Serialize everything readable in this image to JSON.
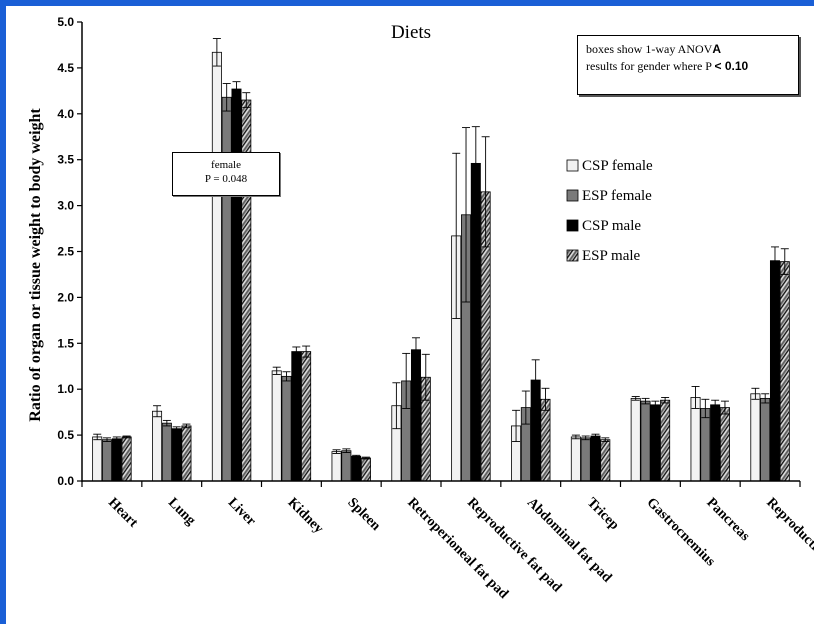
{
  "chart_data": {
    "type": "bar",
    "title": "Diets",
    "ylabel": "Ratio of organ or tissue weight to body weight",
    "xlabel": "",
    "ylim": [
      0,
      5.0
    ],
    "yticks": [
      "0.0",
      "0.5",
      "1.0",
      "1.5",
      "2.0",
      "2.5",
      "3.0",
      "3.5",
      "4.0",
      "4.5",
      "5.0"
    ],
    "grid": false,
    "legend_position": "right",
    "categories": [
      "Heart",
      "Lung",
      "Liver",
      "Kidney",
      "Spleen",
      "Retroperioneal fat pad",
      "Reproductive fat pad",
      "Abdominal fat pad",
      "Tricep",
      "Gastrocnemius",
      "Pancreas",
      "Reproductive tract"
    ],
    "series": [
      {
        "name": "CSP female",
        "fill": "#f2f2f2",
        "values": [
          0.48,
          0.76,
          4.67,
          1.2,
          0.32,
          0.82,
          2.67,
          0.6,
          0.48,
          0.9,
          0.91,
          0.95
        ],
        "errors": [
          0.03,
          0.06,
          0.15,
          0.04,
          0.02,
          0.25,
          0.9,
          0.17,
          0.02,
          0.02,
          0.12,
          0.06
        ]
      },
      {
        "name": "ESP female",
        "fill": "#7a7a7a",
        "values": [
          0.45,
          0.63,
          4.18,
          1.14,
          0.33,
          1.09,
          2.9,
          0.8,
          0.47,
          0.87,
          0.79,
          0.9
        ],
        "errors": [
          0.02,
          0.03,
          0.15,
          0.05,
          0.02,
          0.3,
          0.95,
          0.18,
          0.02,
          0.03,
          0.1,
          0.05
        ]
      },
      {
        "name": "CSP male",
        "fill": "#000000",
        "values": [
          0.46,
          0.57,
          4.27,
          1.41,
          0.27,
          1.43,
          3.46,
          1.1,
          0.49,
          0.83,
          0.83,
          2.4
        ],
        "errors": [
          0.02,
          0.02,
          0.08,
          0.05,
          0.01,
          0.13,
          0.4,
          0.22,
          0.02,
          0.04,
          0.05,
          0.15
        ]
      },
      {
        "name": "ESP male",
        "fill": "striped",
        "values": [
          0.48,
          0.6,
          4.15,
          1.41,
          0.25,
          1.13,
          3.15,
          0.89,
          0.45,
          0.88,
          0.8,
          2.39
        ],
        "errors": [
          0.01,
          0.02,
          0.08,
          0.06,
          0.01,
          0.25,
          0.6,
          0.12,
          0.02,
          0.03,
          0.07,
          0.14
        ]
      }
    ],
    "annotations": [
      {
        "category": "Liver",
        "line1": "female",
        "line2": "P = 0.048"
      }
    ],
    "note": {
      "line1_prefix": "boxes show 1-way ANOV",
      "line1_bold": "A",
      "line2_prefix": "results for gender where P ",
      "line2_bold": "< 0.10"
    }
  }
}
